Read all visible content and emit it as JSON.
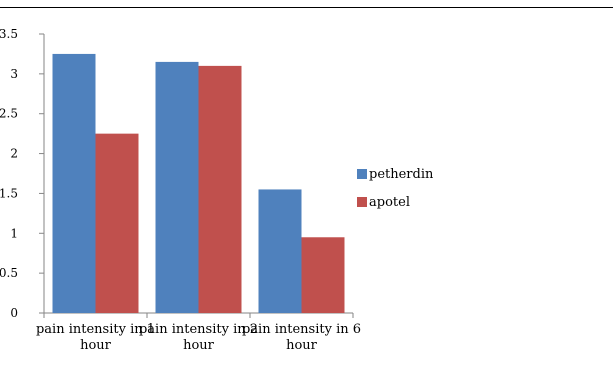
{
  "chart_data": {
    "type": "bar",
    "categories": [
      [
        "pain intensity in 1",
        "hour"
      ],
      [
        "pain intensity in 2",
        "hour"
      ],
      [
        "pain intensity in 6",
        "hour"
      ]
    ],
    "series": [
      {
        "name": "petherdin",
        "color": "#4F81BD",
        "values": [
          3.25,
          3.15,
          1.55
        ]
      },
      {
        "name": "apotel",
        "color": "#C0504D",
        "values": [
          2.25,
          3.1,
          0.95
        ]
      }
    ],
    "yticks": [
      "0",
      "0.5",
      "1",
      "1.5",
      "2",
      "2.5",
      "3",
      "3.5"
    ],
    "ylim": [
      0,
      3.5
    ],
    "grid": false,
    "legend": "right"
  }
}
